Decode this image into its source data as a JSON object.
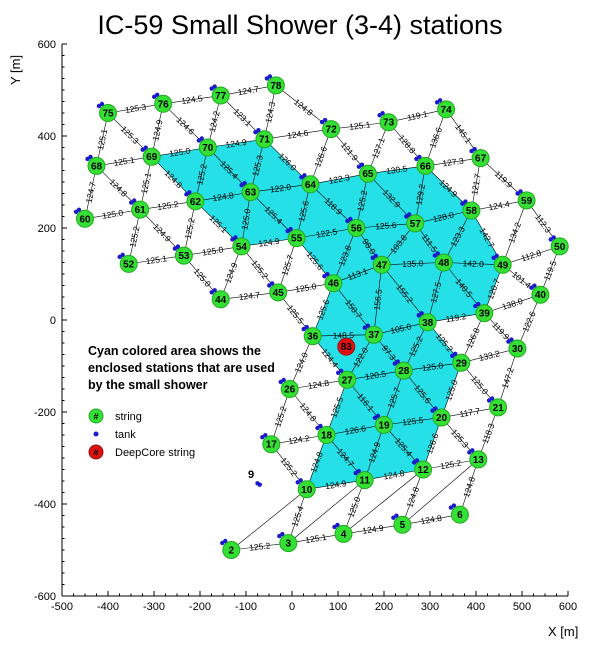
{
  "title": "IC-59 Small Shower (3-4) stations",
  "xlabel": "X [m]",
  "ylabel": "Y [m]",
  "xticks": [
    "-500",
    "-400",
    "-300",
    "-200",
    "-100",
    "0",
    "100",
    "200",
    "300",
    "400",
    "500",
    "600"
  ],
  "yticks": [
    "600",
    "400",
    "200",
    "0",
    "-200",
    "-400",
    "-600"
  ],
  "note": "Cyan colored area shows the enclosed stations that are used by the small shower",
  "legend": {
    "string": "string",
    "tank": "tank",
    "deepcore": "DeepCore string",
    "string_symbol": "#",
    "deepcore_symbol": "#"
  },
  "colors": {
    "station": "#33e033",
    "station_stroke": "#22aa22",
    "cyan": "#26e0e8",
    "deepcore": "#dd1111",
    "tank": "#1a1acc",
    "edge": "#000000"
  },
  "lone_label": "9",
  "deepcore_station": {
    "id": "83",
    "x": 118,
    "y": -58
  },
  "stations": [
    {
      "id": "2",
      "x": -132,
      "y": -500
    },
    {
      "id": "3",
      "x": -8,
      "y": -485
    },
    {
      "id": "4",
      "x": 112,
      "y": -465
    },
    {
      "id": "5",
      "x": 240,
      "y": -445
    },
    {
      "id": "6",
      "x": 365,
      "y": -423
    },
    {
      "id": "10",
      "x": 32,
      "y": -368
    },
    {
      "id": "11",
      "x": 158,
      "y": -348
    },
    {
      "id": "12",
      "x": 285,
      "y": -325
    },
    {
      "id": "13",
      "x": 405,
      "y": -303
    },
    {
      "id": "17",
      "x": -45,
      "y": -270
    },
    {
      "id": "18",
      "x": 75,
      "y": -250
    },
    {
      "id": "19",
      "x": 200,
      "y": -228
    },
    {
      "id": "20",
      "x": 325,
      "y": -212
    },
    {
      "id": "21",
      "x": 448,
      "y": -190
    },
    {
      "id": "26",
      "x": -5,
      "y": -150
    },
    {
      "id": "27",
      "x": 120,
      "y": -130
    },
    {
      "id": "28",
      "x": 243,
      "y": -110
    },
    {
      "id": "29",
      "x": 368,
      "y": -93
    },
    {
      "id": "30",
      "x": 490,
      "y": -62
    },
    {
      "id": "36",
      "x": 45,
      "y": -35
    },
    {
      "id": "37",
      "x": 178,
      "y": -32
    },
    {
      "id": "38",
      "x": 295,
      "y": -5
    },
    {
      "id": "39",
      "x": 418,
      "y": 15
    },
    {
      "id": "40",
      "x": 540,
      "y": 55
    },
    {
      "id": "44",
      "x": -155,
      "y": 45
    },
    {
      "id": "45",
      "x": -30,
      "y": 60
    },
    {
      "id": "46",
      "x": 90,
      "y": 80
    },
    {
      "id": "47",
      "x": 195,
      "y": 120
    },
    {
      "id": "48",
      "x": 330,
      "y": 125
    },
    {
      "id": "49",
      "x": 458,
      "y": 120
    },
    {
      "id": "50",
      "x": 582,
      "y": 160
    },
    {
      "id": "52",
      "x": -355,
      "y": 122
    },
    {
      "id": "53",
      "x": -235,
      "y": 140
    },
    {
      "id": "54",
      "x": -110,
      "y": 160
    },
    {
      "id": "55",
      "x": 10,
      "y": 178
    },
    {
      "id": "56",
      "x": 140,
      "y": 200
    },
    {
      "id": "57",
      "x": 268,
      "y": 210
    },
    {
      "id": "58",
      "x": 390,
      "y": 238
    },
    {
      "id": "59",
      "x": 510,
      "y": 260
    },
    {
      "id": "60",
      "x": -450,
      "y": 220
    },
    {
      "id": "61",
      "x": -330,
      "y": 240
    },
    {
      "id": "62",
      "x": -210,
      "y": 258
    },
    {
      "id": "63",
      "x": -90,
      "y": 278
    },
    {
      "id": "64",
      "x": 40,
      "y": 295
    },
    {
      "id": "65",
      "x": 165,
      "y": 318
    },
    {
      "id": "66",
      "x": 290,
      "y": 335
    },
    {
      "id": "67",
      "x": 410,
      "y": 352
    },
    {
      "id": "68",
      "x": -425,
      "y": 335
    },
    {
      "id": "69",
      "x": -305,
      "y": 355
    },
    {
      "id": "70",
      "x": -183,
      "y": 375
    },
    {
      "id": "71",
      "x": -60,
      "y": 393
    },
    {
      "id": "72",
      "x": 85,
      "y": 415
    },
    {
      "id": "73",
      "x": 210,
      "y": 430
    },
    {
      "id": "74",
      "x": 335,
      "y": 458
    },
    {
      "id": "75",
      "x": -400,
      "y": 450
    },
    {
      "id": "76",
      "x": -280,
      "y": 470
    },
    {
      "id": "77",
      "x": -155,
      "y": 488
    },
    {
      "id": "78",
      "x": -35,
      "y": 510
    }
  ],
  "edges": [
    {
      "a": "2",
      "b": "3",
      "label": "125.2"
    },
    {
      "a": "3",
      "b": "4",
      "label": "125.1"
    },
    {
      "a": "4",
      "b": "5",
      "label": "124.9"
    },
    {
      "a": "5",
      "b": "6",
      "label": "124.8"
    },
    {
      "a": "10",
      "b": "11",
      "label": "124.9"
    },
    {
      "a": "11",
      "b": "12",
      "label": "124.8"
    },
    {
      "a": "12",
      "b": "13",
      "label": "125.2"
    },
    {
      "a": "17",
      "b": "18",
      "label": "124.2"
    },
    {
      "a": "18",
      "b": "19",
      "label": "126.6"
    },
    {
      "a": "19",
      "b": "20",
      "label": "125.5"
    },
    {
      "a": "20",
      "b": "21",
      "label": "117.7"
    },
    {
      "a": "26",
      "b": "27",
      "label": "124.8"
    },
    {
      "a": "27",
      "b": "28",
      "label": "120.5"
    },
    {
      "a": "28",
      "b": "29",
      "label": "125.0"
    },
    {
      "a": "29",
      "b": "30",
      "label": "133.2"
    },
    {
      "a": "36",
      "b": "37",
      "label": "148.5"
    },
    {
      "a": "37",
      "b": "38",
      "label": "105.0"
    },
    {
      "a": "38",
      "b": "39",
      "label": "119.2"
    },
    {
      "a": "39",
      "b": "40",
      "label": "138.0"
    },
    {
      "a": "44",
      "b": "45",
      "label": "124.7"
    },
    {
      "a": "45",
      "b": "46",
      "label": "125.0"
    },
    {
      "a": "46",
      "b": "47",
      "label": "113.1"
    },
    {
      "a": "47",
      "b": "48",
      "label": "135.0"
    },
    {
      "a": "48",
      "b": "49",
      "label": "142.0"
    },
    {
      "a": "49",
      "b": "50",
      "label": "112.8"
    },
    {
      "a": "52",
      "b": "53",
      "label": "125.1"
    },
    {
      "a": "53",
      "b": "54",
      "label": "125.0"
    },
    {
      "a": "54",
      "b": "55",
      "label": "124.9"
    },
    {
      "a": "55",
      "b": "56",
      "label": "122.5"
    },
    {
      "a": "56",
      "b": "57",
      "label": "125.6"
    },
    {
      "a": "57",
      "b": "58",
      "label": "128.0"
    },
    {
      "a": "58",
      "b": "59",
      "label": "124.4"
    },
    {
      "a": "60",
      "b": "61",
      "label": "125.0"
    },
    {
      "a": "61",
      "b": "62",
      "label": "125.2"
    },
    {
      "a": "62",
      "b": "63",
      "label": "124.8"
    },
    {
      "a": "63",
      "b": "64",
      "label": "122.0"
    },
    {
      "a": "64",
      "b": "65",
      "label": "122.3"
    },
    {
      "a": "65",
      "b": "66",
      "label": "130.5"
    },
    {
      "a": "66",
      "b": "67",
      "label": "127.3"
    },
    {
      "a": "68",
      "b": "69",
      "label": "125.1"
    },
    {
      "a": "69",
      "b": "70",
      "label": "125.0"
    },
    {
      "a": "70",
      "b": "71",
      "label": "124.9"
    },
    {
      "a": "71",
      "b": "72",
      "label": "124.6"
    },
    {
      "a": "72",
      "b": "73",
      "label": "125.1"
    },
    {
      "a": "73",
      "b": "74",
      "label": "119.1"
    },
    {
      "a": "75",
      "b": "76",
      "label": "125.3"
    },
    {
      "a": "76",
      "b": "77",
      "label": "124.5"
    },
    {
      "a": "77",
      "b": "78",
      "label": "124.7"
    },
    {
      "a": "2",
      "b": "10",
      "label": ""
    },
    {
      "a": "3",
      "b": "10",
      "label": "125.4"
    },
    {
      "a": "3",
      "b": "11",
      "label": ""
    },
    {
      "a": "4",
      "b": "11",
      "label": "125.0"
    },
    {
      "a": "4",
      "b": "12",
      "label": ""
    },
    {
      "a": "5",
      "b": "12",
      "label": "124.8"
    },
    {
      "a": "5",
      "b": "13",
      "label": ""
    },
    {
      "a": "6",
      "b": "13",
      "label": "124.8"
    },
    {
      "a": "10",
      "b": "17",
      "label": "125.2"
    },
    {
      "a": "10",
      "b": "18",
      "label": "124.8"
    },
    {
      "a": "11",
      "b": "18",
      "label": "124.7"
    },
    {
      "a": "11",
      "b": "19",
      "label": "124.9"
    },
    {
      "a": "12",
      "b": "19",
      "label": "125.4"
    },
    {
      "a": "12",
      "b": "20",
      "label": "126.6"
    },
    {
      "a": "13",
      "b": "20",
      "label": "125.3"
    },
    {
      "a": "13",
      "b": "21",
      "label": "118.3"
    },
    {
      "a": "17",
      "b": "26",
      "label": "125.2"
    },
    {
      "a": "18",
      "b": "26",
      "label": "124.8"
    },
    {
      "a": "18",
      "b": "27",
      "label": "125.5"
    },
    {
      "a": "19",
      "b": "27",
      "label": "116.1"
    },
    {
      "a": "19",
      "b": "28",
      "label": "125.7"
    },
    {
      "a": "20",
      "b": "28",
      "label": "125.6"
    },
    {
      "a": "20",
      "b": "29",
      "label": "125.0"
    },
    {
      "a": "21",
      "b": "29",
      "label": "125.0"
    },
    {
      "a": "21",
      "b": "30",
      "label": "147.2"
    },
    {
      "a": "26",
      "b": "36",
      "label": "124.0"
    },
    {
      "a": "27",
      "b": "36",
      "label": "124.4"
    },
    {
      "a": "27",
      "b": "37",
      "label": "122.0"
    },
    {
      "a": "28",
      "b": "37",
      "label": "97.3"
    },
    {
      "a": "28",
      "b": "38",
      "label": "125.2"
    },
    {
      "a": "29",
      "b": "38",
      "label": "125.2"
    },
    {
      "a": "29",
      "b": "39",
      "label": "126.8"
    },
    {
      "a": "30",
      "b": "39",
      "label": "119.9"
    },
    {
      "a": "30",
      "b": "40",
      "label": "122.6"
    },
    {
      "a": "36",
      "b": "45",
      "label": "125.5"
    },
    {
      "a": "36",
      "b": "46",
      "label": "125.6"
    },
    {
      "a": "37",
      "b": "46",
      "label": "150.7"
    },
    {
      "a": "37",
      "b": "47",
      "label": "156.5"
    },
    {
      "a": "38",
      "b": "47",
      "label": "155.2"
    },
    {
      "a": "38",
      "b": "48",
      "label": "127.5"
    },
    {
      "a": "39",
      "b": "48",
      "label": "140.5"
    },
    {
      "a": "39",
      "b": "49",
      "label": "120.7"
    },
    {
      "a": "40",
      "b": "49",
      "label": "101.4"
    },
    {
      "a": "40",
      "b": "50",
      "label": "119.5"
    },
    {
      "a": "44",
      "b": "53",
      "label": "125.0"
    },
    {
      "a": "44",
      "b": "54",
      "label": "124.9"
    },
    {
      "a": "45",
      "b": "54",
      "label": "125.2"
    },
    {
      "a": "45",
      "b": "55",
      "label": "125.7"
    },
    {
      "a": "46",
      "b": "55",
      "label": "125.6"
    },
    {
      "a": "46",
      "b": "56",
      "label": "123.8"
    },
    {
      "a": "47",
      "b": "56",
      "label": "98.0"
    },
    {
      "a": "47",
      "b": "57",
      "label": "103.8"
    },
    {
      "a": "48",
      "b": "57",
      "label": "111.5"
    },
    {
      "a": "48",
      "b": "58",
      "label": "123.3"
    },
    {
      "a": "49",
      "b": "58",
      "label": "142.7"
    },
    {
      "a": "49",
      "b": "59",
      "label": "134.2"
    },
    {
      "a": "50",
      "b": "59",
      "label": "112.3"
    },
    {
      "a": "52",
      "b": "61",
      "label": "125.2"
    },
    {
      "a": "53",
      "b": "61",
      "label": "124.9"
    },
    {
      "a": "53",
      "b": "62",
      "label": "125.2"
    },
    {
      "a": "54",
      "b": "62",
      "label": "125.1"
    },
    {
      "a": "54",
      "b": "63",
      "label": "125.0"
    },
    {
      "a": "55",
      "b": "63",
      "label": "125.4"
    },
    {
      "a": "55",
      "b": "64",
      "label": "125.6"
    },
    {
      "a": "56",
      "b": "64",
      "label": "118.9"
    },
    {
      "a": "56",
      "b": "65",
      "label": "125.2"
    },
    {
      "a": "57",
      "b": "65",
      "label": "132.9"
    },
    {
      "a": "57",
      "b": "66",
      "label": "129.2"
    },
    {
      "a": "58",
      "b": "66",
      "label": "124.9"
    },
    {
      "a": "58",
      "b": "67",
      "label": "121.7"
    },
    {
      "a": "59",
      "b": "67",
      "label": "119.9"
    },
    {
      "a": "60",
      "b": "68",
      "label": "124.7"
    },
    {
      "a": "61",
      "b": "68",
      "label": "124.8"
    },
    {
      "a": "61",
      "b": "69",
      "label": "125.1"
    },
    {
      "a": "62",
      "b": "69",
      "label": "124.8"
    },
    {
      "a": "62",
      "b": "70",
      "label": "125.2"
    },
    {
      "a": "63",
      "b": "70",
      "label": "125.4"
    },
    {
      "a": "63",
      "b": "71",
      "label": "125.3"
    },
    {
      "a": "64",
      "b": "71",
      "label": "126.0"
    },
    {
      "a": "64",
      "b": "72",
      "label": "126.6"
    },
    {
      "a": "65",
      "b": "72",
      "label": "121.9"
    },
    {
      "a": "65",
      "b": "73",
      "label": "127.1"
    },
    {
      "a": "66",
      "b": "73",
      "label": "128.8"
    },
    {
      "a": "66",
      "b": "74",
      "label": "136.6"
    },
    {
      "a": "67",
      "b": "74",
      "label": "145.1"
    },
    {
      "a": "68",
      "b": "75",
      "label": "125.1"
    },
    {
      "a": "69",
      "b": "75",
      "label": "125.3"
    },
    {
      "a": "69",
      "b": "76",
      "label": "124.9"
    },
    {
      "a": "70",
      "b": "76",
      "label": "124.6"
    },
    {
      "a": "70",
      "b": "77",
      "label": "124.2"
    },
    {
      "a": "71",
      "b": "77",
      "label": "123.1"
    },
    {
      "a": "71",
      "b": "78",
      "label": "124.3"
    },
    {
      "a": "72",
      "b": "78",
      "label": "124.8"
    }
  ],
  "cyan_regions": [
    [
      "69",
      "70",
      "71",
      "64",
      "65",
      "66",
      "58",
      "49",
      "39",
      "38",
      "29",
      "20",
      "12",
      "11",
      "10",
      "18",
      "27",
      "36",
      "46",
      "55",
      "54",
      "62"
    ]
  ],
  "tanks": [
    {
      "x": -75,
      "y": -355
    },
    {
      "x": -70,
      "y": -358
    }
  ]
}
